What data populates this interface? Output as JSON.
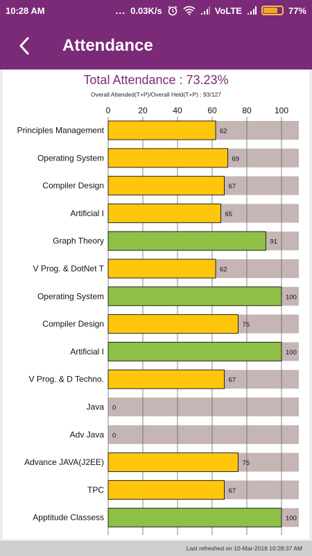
{
  "status_bar": {
    "time": "10:28 AM",
    "dots": "...",
    "net_speed": "0.03K/s",
    "network": "VoLTE",
    "battery": "77%",
    "battery_level": 0.77,
    "icons": [
      "alarm-icon",
      "wifi-icon",
      "signal-icon",
      "signal-icon",
      "battery-icon"
    ]
  },
  "app_bar": {
    "title": "Attendance",
    "back_icon": "chevron-left-icon"
  },
  "summary": {
    "total": "Total Attendance : 73.23%",
    "overall": "Overall Attended(T+P)/Overall Held(T+P) : 93/127"
  },
  "colors": {
    "purple": "#7b2a78",
    "high": "#8dc044",
    "low": "#ffc60c",
    "track": "#c6b5b5"
  },
  "chart_data": {
    "type": "bar",
    "orientation": "horizontal",
    "xlim": [
      0,
      110
    ],
    "xticks": [
      0,
      20,
      40,
      60,
      80,
      100
    ],
    "categories": [
      "Principles  Management",
      "Operating System",
      "Compiler Design",
      "Artificial I",
      "Graph Theory",
      "V Prog. & DotNet T",
      "Operating System",
      "Compiler Design",
      "Artificial I",
      "V Prog. & D Techno.",
      "Java",
      "Adv Java",
      "Advance JAVA(J2EE)",
      "TPC",
      "Apptitude Classess"
    ],
    "values": [
      62,
      69,
      67,
      65,
      91,
      62,
      100,
      75,
      100,
      67,
      0,
      0,
      75,
      67,
      100
    ],
    "xlabel": "",
    "ylabel": ""
  },
  "footer": {
    "refreshed": "Last refreshed on 10-Mar-2018 10:28:37 AM"
  }
}
